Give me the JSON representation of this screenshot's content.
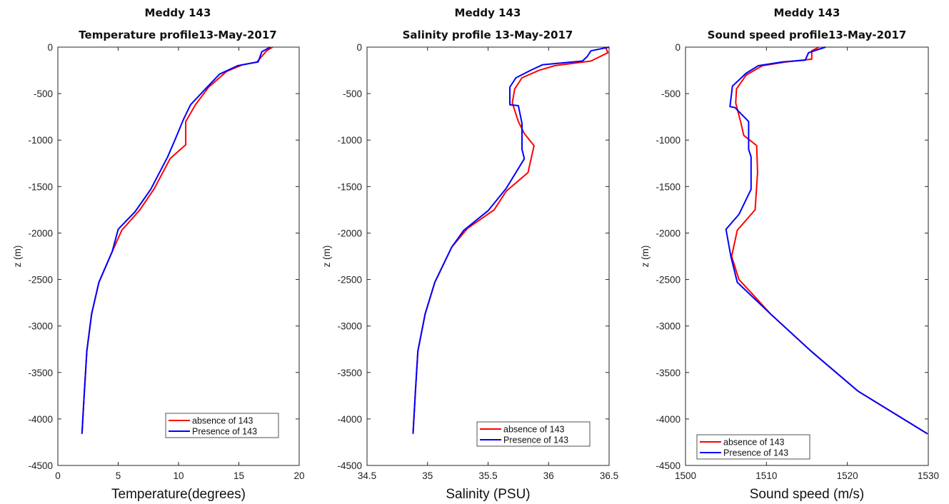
{
  "chart_data": [
    {
      "type": "line",
      "title": "Meddy 143",
      "subtitle": "Temperature profile13-May-2017",
      "xlabel": "Temperature(degrees)",
      "ylabel": "z (m)",
      "xlim": [
        0,
        20
      ],
      "ylim": [
        -4500,
        0
      ],
      "xticks": [
        0,
        5,
        10,
        15,
        20
      ],
      "xtick_labels": [
        "0",
        "5",
        "10",
        "15",
        "20"
      ],
      "yticks": [
        0,
        -500,
        -1000,
        -1500,
        -2000,
        -2500,
        -3000,
        -3500,
        -4000,
        -4500
      ],
      "ytick_labels": [
        "0",
        "-500",
        "-1000",
        "-1500",
        "-2000",
        "-2500",
        "-3000",
        "-3500",
        "-4000",
        "-4500"
      ],
      "grid": false,
      "legend_position": "bottom-right",
      "series": [
        {
          "name": "absence of 143",
          "color": "#ff0000",
          "points": [
            [
              17.8,
              0
            ],
            [
              17.3,
              -40
            ],
            [
              16.9,
              -100
            ],
            [
              16.5,
              -160
            ],
            [
              15.3,
              -190
            ],
            [
              14.0,
              -260
            ],
            [
              12.5,
              -430
            ],
            [
              11.4,
              -620
            ],
            [
              10.6,
              -800
            ],
            [
              10.6,
              -1050
            ],
            [
              9.3,
              -1200
            ],
            [
              8.0,
              -1520
            ],
            [
              6.8,
              -1750
            ],
            [
              5.3,
              -1970
            ],
            [
              4.5,
              -2200
            ],
            [
              3.4,
              -2530
            ],
            [
              2.8,
              -2870
            ],
            [
              2.4,
              -3270
            ],
            [
              2.2,
              -3700
            ],
            [
              2.0,
              -4160
            ]
          ]
        },
        {
          "name": "Presence of 143",
          "color": "#0000ff",
          "points": [
            [
              17.6,
              0
            ],
            [
              16.9,
              -50
            ],
            [
              16.6,
              -160
            ],
            [
              14.9,
              -200
            ],
            [
              13.4,
              -290
            ],
            [
              12.3,
              -440
            ],
            [
              11.0,
              -620
            ],
            [
              10.4,
              -780
            ],
            [
              9.7,
              -1000
            ],
            [
              9.1,
              -1180
            ],
            [
              7.7,
              -1530
            ],
            [
              6.4,
              -1770
            ],
            [
              5.0,
              -1960
            ],
            [
              4.5,
              -2200
            ],
            [
              3.4,
              -2530
            ],
            [
              2.8,
              -2870
            ],
            [
              2.4,
              -3270
            ],
            [
              2.2,
              -3700
            ],
            [
              2.0,
              -4160
            ]
          ]
        }
      ]
    },
    {
      "type": "line",
      "title": "Meddy 143",
      "subtitle": "Salinity profile 13-May-2017",
      "xlabel": "Salinity (PSU)",
      "ylabel": "z (m)",
      "xlim": [
        34.5,
        36.5
      ],
      "ylim": [
        -4500,
        0
      ],
      "xticks": [
        34.5,
        35,
        35.5,
        36,
        36.5
      ],
      "xtick_labels": [
        "34.5",
        "35",
        "35.5",
        "36",
        "36.5"
      ],
      "yticks": [
        0,
        -500,
        -1000,
        -1500,
        -2000,
        -2500,
        -3000,
        -3500,
        -4000,
        -4500
      ],
      "ytick_labels": [
        "0",
        "-500",
        "-1000",
        "-1500",
        "-2000",
        "-2500",
        "-3000",
        "-3500",
        "-4000",
        "-4500"
      ],
      "grid": false,
      "legend_position": "bottom-right",
      "series": [
        {
          "name": "absence of 143",
          "color": "#ff0000",
          "points": [
            [
              36.47,
              0
            ],
            [
              36.49,
              -60
            ],
            [
              36.35,
              -150
            ],
            [
              36.05,
              -200
            ],
            [
              35.92,
              -250
            ],
            [
              35.78,
              -330
            ],
            [
              35.72,
              -450
            ],
            [
              35.7,
              -600
            ],
            [
              35.75,
              -800
            ],
            [
              35.8,
              -930
            ],
            [
              35.88,
              -1060
            ],
            [
              35.83,
              -1350
            ],
            [
              35.65,
              -1550
            ],
            [
              35.55,
              -1750
            ],
            [
              35.33,
              -1950
            ],
            [
              35.2,
              -2150
            ],
            [
              35.06,
              -2530
            ],
            [
              34.98,
              -2870
            ],
            [
              34.92,
              -3270
            ],
            [
              34.9,
              -3700
            ],
            [
              34.88,
              -4160
            ]
          ]
        },
        {
          "name": "Presence of 143",
          "color": "#0000ff",
          "points": [
            [
              36.5,
              0
            ],
            [
              36.35,
              -40
            ],
            [
              36.32,
              -100
            ],
            [
              36.28,
              -150
            ],
            [
              35.95,
              -190
            ],
            [
              35.85,
              -250
            ],
            [
              35.73,
              -330
            ],
            [
              35.68,
              -430
            ],
            [
              35.68,
              -620
            ],
            [
              35.75,
              -630
            ],
            [
              35.78,
              -820
            ],
            [
              35.78,
              -1100
            ],
            [
              35.8,
              -1200
            ],
            [
              35.65,
              -1520
            ],
            [
              35.5,
              -1760
            ],
            [
              35.3,
              -1970
            ],
            [
              35.2,
              -2150
            ],
            [
              35.06,
              -2530
            ],
            [
              34.98,
              -2870
            ],
            [
              34.92,
              -3270
            ],
            [
              34.9,
              -3700
            ],
            [
              34.88,
              -4160
            ]
          ]
        }
      ]
    },
    {
      "type": "line",
      "title": "Meddy 143",
      "subtitle": "Sound speed profile13-May-2017",
      "xlabel": "Sound speed (m/s)",
      "ylabel": "z (m)",
      "xlim": [
        1500,
        1530
      ],
      "ylim": [
        -4500,
        0
      ],
      "xticks": [
        1500,
        1510,
        1520,
        1530
      ],
      "xtick_labels": [
        "1500",
        "1510",
        "1520",
        "1530"
      ],
      "yticks": [
        0,
        -500,
        -1000,
        -1500,
        -2000,
        -2500,
        -3000,
        -3500,
        -4000,
        -4500
      ],
      "ytick_labels": [
        "0",
        "-500",
        "-1000",
        "-1500",
        "-2000",
        "-2500",
        "-3000",
        "-3500",
        "-4000",
        "-4500"
      ],
      "grid": false,
      "legend_position": "bottom-left",
      "series": [
        {
          "name": "absence of 143",
          "color": "#ff0000",
          "points": [
            [
              1516.5,
              0
            ],
            [
              1515.6,
              -40
            ],
            [
              1515.6,
              -130
            ],
            [
              1512.4,
              -160
            ],
            [
              1509.5,
              -200
            ],
            [
              1507.5,
              -300
            ],
            [
              1506.3,
              -450
            ],
            [
              1506.2,
              -600
            ],
            [
              1506.8,
              -800
            ],
            [
              1507.2,
              -950
            ],
            [
              1508.8,
              -1060
            ],
            [
              1508.9,
              -1350
            ],
            [
              1508.6,
              -1750
            ],
            [
              1506.4,
              -1970
            ],
            [
              1505.7,
              -2250
            ],
            [
              1506.6,
              -2500
            ],
            [
              1508.2,
              -2650
            ],
            [
              1510.5,
              -2870
            ],
            [
              1515.5,
              -3270
            ],
            [
              1521.3,
              -3700
            ],
            [
              1529.9,
              -4160
            ]
          ]
        },
        {
          "name": "Presence of 143",
          "color": "#0000ff",
          "points": [
            [
              1517.3,
              0
            ],
            [
              1515.2,
              -60
            ],
            [
              1514.8,
              -140
            ],
            [
              1512.0,
              -160
            ],
            [
              1509.0,
              -200
            ],
            [
              1507.5,
              -280
            ],
            [
              1505.8,
              -420
            ],
            [
              1505.5,
              -640
            ],
            [
              1506.1,
              -650
            ],
            [
              1507.8,
              -800
            ],
            [
              1507.8,
              -1100
            ],
            [
              1508.1,
              -1180
            ],
            [
              1508.1,
              -1530
            ],
            [
              1506.6,
              -1800
            ],
            [
              1505.0,
              -1960
            ],
            [
              1505.6,
              -2250
            ],
            [
              1506.4,
              -2530
            ],
            [
              1510.5,
              -2870
            ],
            [
              1515.5,
              -3270
            ],
            [
              1521.3,
              -3700
            ],
            [
              1529.9,
              -4160
            ]
          ]
        }
      ]
    }
  ]
}
